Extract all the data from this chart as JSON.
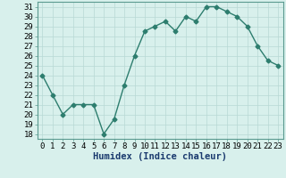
{
  "x": [
    0,
    1,
    2,
    3,
    4,
    5,
    6,
    7,
    8,
    9,
    10,
    11,
    12,
    13,
    14,
    15,
    16,
    17,
    18,
    19,
    20,
    21,
    22,
    23
  ],
  "y": [
    24,
    22,
    20,
    21,
    21,
    21,
    18,
    19.5,
    23,
    26,
    28.5,
    29,
    29.5,
    28.5,
    30,
    29.5,
    31,
    31,
    30.5,
    30,
    29,
    27,
    25.5,
    25
  ],
  "line_color": "#2d7d6e",
  "marker": "D",
  "marker_size": 2.5,
  "bg_color": "#d8f0ec",
  "grid_color": "#b8d8d4",
  "xlabel": "Humidex (Indice chaleur)",
  "xlim": [
    -0.5,
    23.5
  ],
  "ylim": [
    17.5,
    31.5
  ],
  "yticks": [
    18,
    19,
    20,
    21,
    22,
    23,
    24,
    25,
    26,
    27,
    28,
    29,
    30,
    31
  ],
  "xticks": [
    0,
    1,
    2,
    3,
    4,
    5,
    6,
    7,
    8,
    9,
    10,
    11,
    12,
    13,
    14,
    15,
    16,
    17,
    18,
    19,
    20,
    21,
    22,
    23
  ],
  "xlabel_fontsize": 7.5,
  "tick_fontsize": 6.5,
  "linewidth": 1.0
}
